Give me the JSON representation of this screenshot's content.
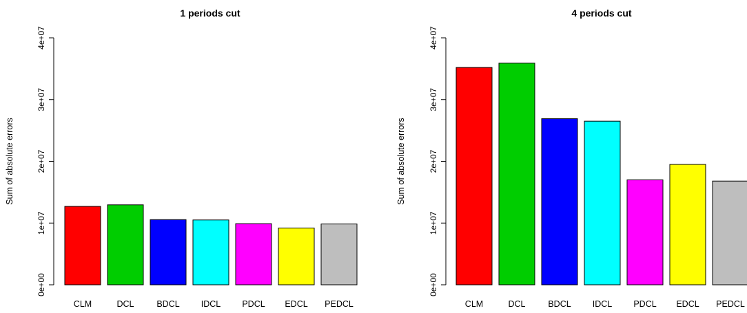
{
  "chart_data": [
    {
      "type": "bar",
      "title": "1 periods cut",
      "xlabel": "",
      "ylabel": "Sum of absolute errors",
      "categories": [
        "CLM",
        "DCL",
        "BDCL",
        "IDCL",
        "PDCL",
        "EDCL",
        "PEDCL"
      ],
      "values": [
        12700000,
        12950000,
        10550000,
        10500000,
        9900000,
        9200000,
        9850000
      ],
      "ylim": [
        0,
        40000000
      ],
      "yticks": [
        0,
        10000000,
        20000000,
        30000000,
        40000000
      ],
      "ytick_labels": [
        "0e+00",
        "1e+07",
        "2e+07",
        "3e+07",
        "4e+07"
      ],
      "colors": [
        "#ff0000",
        "#00cd00",
        "#0000ff",
        "#00ffff",
        "#ff00ff",
        "#ffff00",
        "#bebebe"
      ],
      "grid": false,
      "legend": "none"
    },
    {
      "type": "bar",
      "title": "4 periods cut",
      "xlabel": "",
      "ylabel": "Sum of absolute errors",
      "categories": [
        "CLM",
        "DCL",
        "BDCL",
        "IDCL",
        "PDCL",
        "EDCL",
        "PEDCL"
      ],
      "values": [
        35200000,
        35900000,
        26900000,
        26500000,
        17000000,
        19500000,
        16800000
      ],
      "ylim": [
        0,
        40000000
      ],
      "yticks": [
        0,
        10000000,
        20000000,
        30000000,
        40000000
      ],
      "ytick_labels": [
        "0e+00",
        "1e+07",
        "2e+07",
        "3e+07",
        "4e+07"
      ],
      "colors": [
        "#ff0000",
        "#00cd00",
        "#0000ff",
        "#00ffff",
        "#ff00ff",
        "#ffff00",
        "#bebebe"
      ],
      "grid": false,
      "legend": "none"
    }
  ]
}
